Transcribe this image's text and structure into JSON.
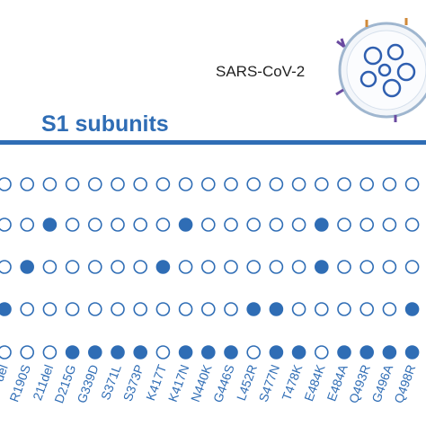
{
  "header": {
    "title": "S1 subunits",
    "virus_label": "SARS-CoV-2"
  },
  "mutations": [
    "del",
    "R190S",
    "211del",
    "D215G",
    "G339D",
    "S371L",
    "S373P",
    "K417T",
    "K417N",
    "N440K",
    "G446S",
    "L452R",
    "S477N",
    "T478K",
    "E484K",
    "E484A",
    "Q493R",
    "G496A",
    "Q498R"
  ],
  "rows": [
    [
      false,
      false,
      false,
      false,
      false,
      false,
      false,
      false,
      false,
      false,
      false,
      false,
      false,
      false,
      false,
      false,
      false,
      false,
      false
    ],
    [
      false,
      false,
      true,
      false,
      false,
      false,
      false,
      false,
      true,
      false,
      false,
      false,
      false,
      false,
      true,
      false,
      false,
      false,
      false
    ],
    [
      false,
      true,
      false,
      false,
      false,
      false,
      false,
      true,
      false,
      false,
      false,
      false,
      false,
      false,
      true,
      false,
      false,
      false,
      false
    ],
    [
      true,
      false,
      false,
      false,
      false,
      false,
      false,
      false,
      false,
      false,
      false,
      true,
      true,
      false,
      false,
      false,
      false,
      false,
      true
    ],
    [
      false,
      false,
      false,
      true,
      true,
      true,
      true,
      false,
      true,
      true,
      true,
      false,
      true,
      true,
      false,
      true,
      true,
      true,
      true
    ]
  ]
}
